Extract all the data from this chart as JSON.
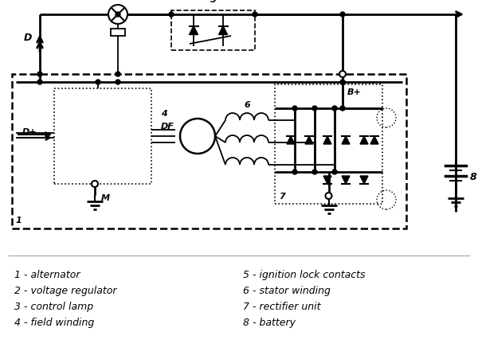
{
  "background_color": "#ffffff",
  "line_color": "#000000",
  "labels_left": [
    "1 - alternator",
    "2 - voltage regulator",
    "3 - control lamp",
    "4 - field winding"
  ],
  "labels_right": [
    "5 - ignition lock contacts",
    "6 - stator winding",
    "7 - rectifier unit",
    "8 - battery"
  ]
}
